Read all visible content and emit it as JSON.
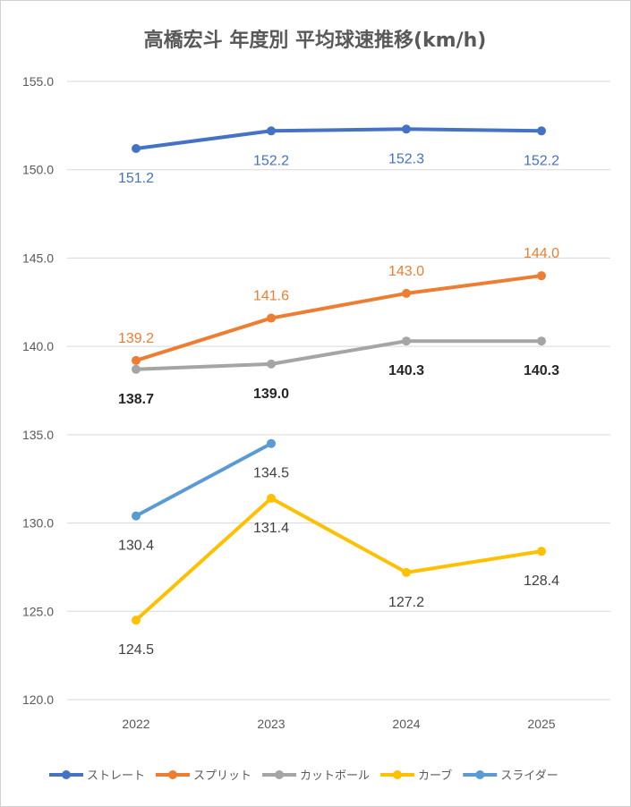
{
  "chart_data": {
    "type": "line",
    "title": "高橋宏斗 年度別 平均球速推移(km/h)",
    "categories": [
      "2022",
      "2023",
      "2024",
      "2025"
    ],
    "ylim": [
      120.0,
      155.0
    ],
    "y_ticks": [
      "120.0",
      "125.0",
      "130.0",
      "135.0",
      "140.0",
      "145.0",
      "150.0",
      "155.0"
    ],
    "grid": true,
    "legend_position": "bottom",
    "series": [
      {
        "name": "ストレート",
        "color": "#4472C4",
        "values": [
          151.2,
          152.2,
          152.3,
          152.2
        ],
        "labels": [
          "151.2",
          "152.2",
          "152.3",
          "152.2"
        ],
        "label_pos": "below",
        "label_color": "#4472C4"
      },
      {
        "name": "スプリット",
        "color": "#ED7D31",
        "values": [
          139.2,
          141.6,
          143.0,
          144.0
        ],
        "labels": [
          "139.2",
          "141.6",
          "143.0",
          "144.0"
        ],
        "label_pos": "above",
        "label_color": "#ED7D31"
      },
      {
        "name": "カットボール",
        "color": "#A5A5A5",
        "values": [
          138.7,
          139.0,
          140.3,
          140.3
        ],
        "labels": [
          "138.7",
          "139.0",
          "140.3",
          "140.3"
        ],
        "label_pos": "below",
        "label_color": "#262626",
        "label_bold": true
      },
      {
        "name": "カーブ",
        "color": "#FFC000",
        "values": [
          124.5,
          131.4,
          127.2,
          128.4
        ],
        "labels": [
          "124.5",
          "131.4",
          "127.2",
          "128.4"
        ],
        "label_pos": "below",
        "label_color": "#404040"
      },
      {
        "name": "スライダー",
        "color": "#5B9BD5",
        "values": [
          130.4,
          134.5,
          null,
          null
        ],
        "labels": [
          "130.4",
          "134.5",
          "",
          ""
        ],
        "label_pos": "below",
        "label_color": "#404040"
      }
    ]
  }
}
